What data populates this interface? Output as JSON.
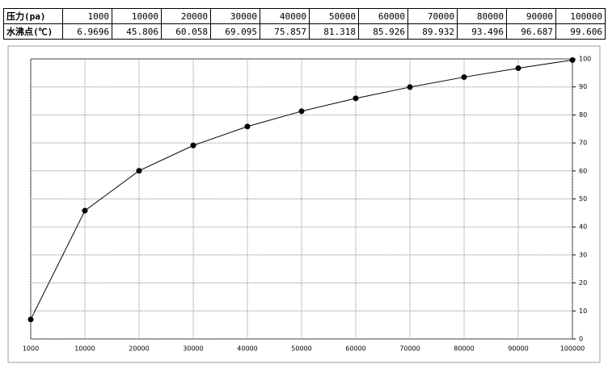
{
  "table": {
    "row_labels": [
      "压力(pa)",
      "水沸点(℃)"
    ]
  },
  "chart_data": {
    "type": "line",
    "categories": [
      "1000",
      "10000",
      "20000",
      "30000",
      "40000",
      "50000",
      "60000",
      "70000",
      "80000",
      "90000",
      "100000"
    ],
    "values": [
      6.9696,
      45.806,
      60.058,
      69.095,
      75.857,
      81.318,
      85.926,
      89.932,
      93.496,
      96.687,
      99.606
    ],
    "color": "#000000",
    "ylim": [
      0,
      100
    ],
    "yticks": [
      0,
      10,
      20,
      30,
      40,
      50,
      60,
      70,
      80,
      90,
      100
    ],
    "grid": true
  }
}
